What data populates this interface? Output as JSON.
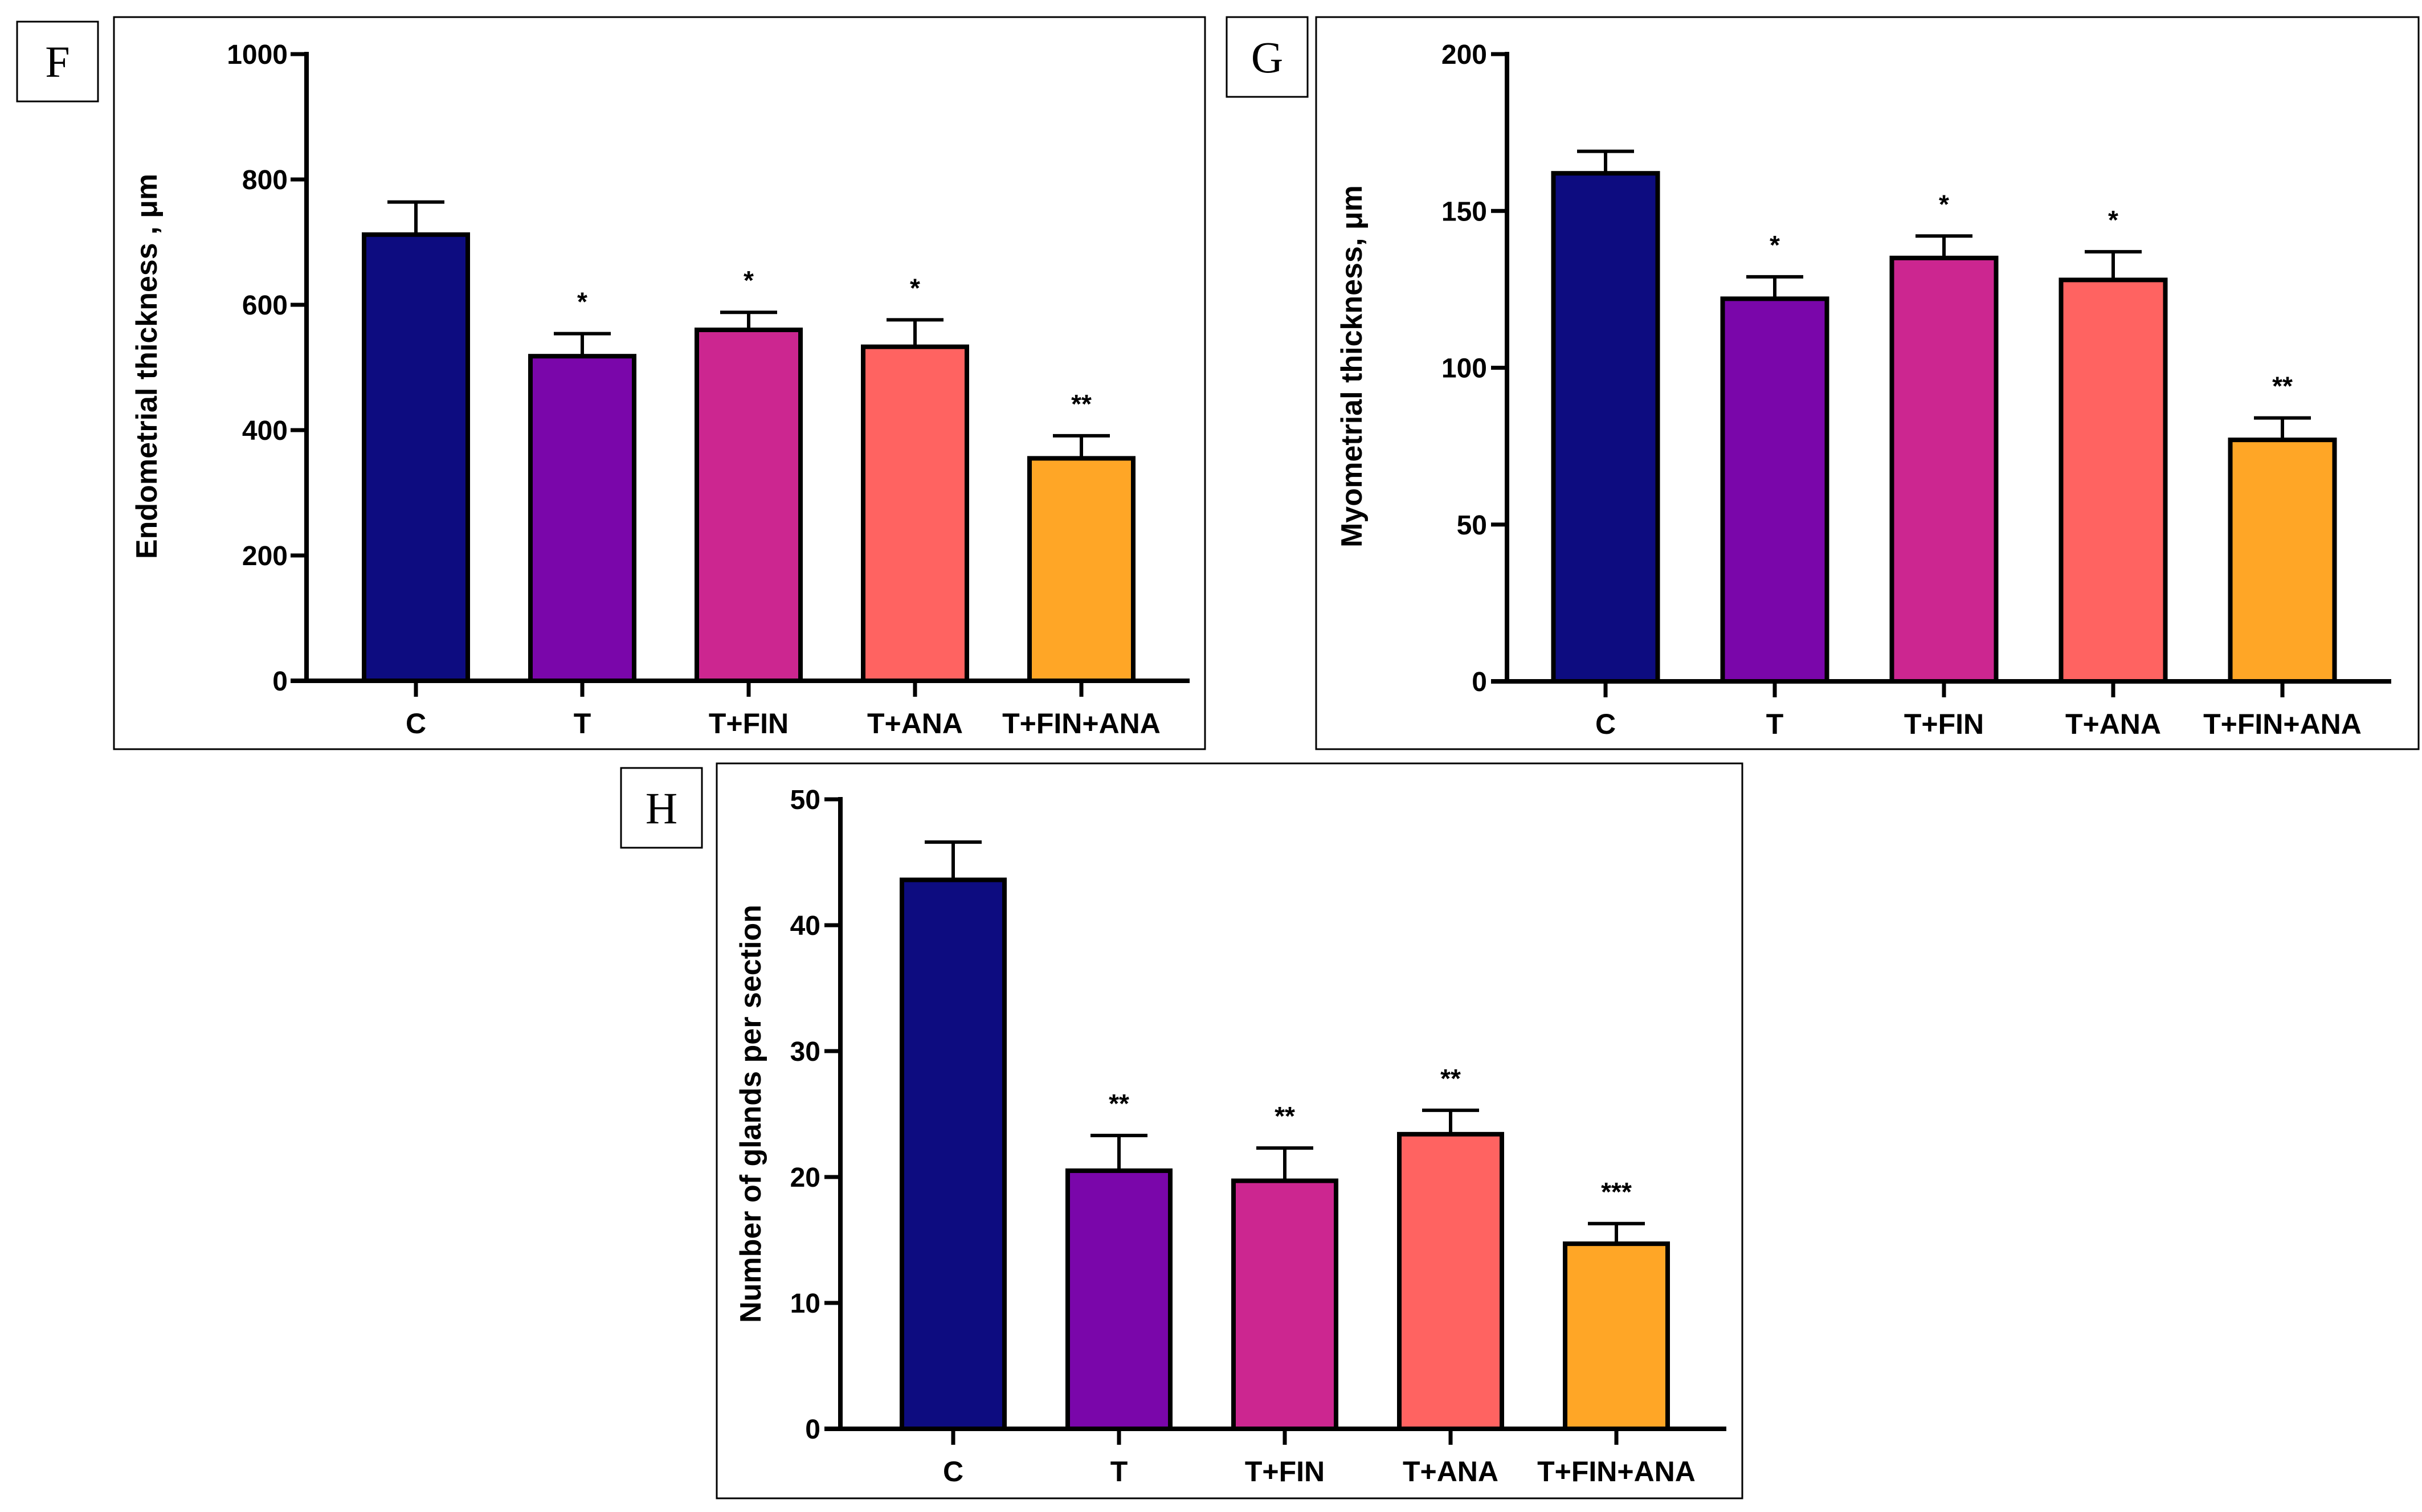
{
  "chart_data": [
    {
      "panel": "F",
      "type": "bar",
      "ylabel": "Endometrial thickness , μm",
      "ylim": [
        0,
        1000
      ],
      "yticks": [
        0,
        200,
        400,
        600,
        800,
        1000
      ],
      "categories": [
        "C",
        "T",
        "T+FIN",
        "T+ANA",
        "T+FIN+ANA"
      ],
      "values": [
        712,
        518,
        560,
        533,
        355
      ],
      "errors": [
        52,
        36,
        28,
        43,
        36
      ],
      "significance": [
        "",
        "*",
        "*",
        "*",
        "**"
      ],
      "colors": [
        "#0d0c80",
        "#7a06aa",
        "#cc2690",
        "#ff6361",
        "#ffa626"
      ]
    },
    {
      "panel": "G",
      "type": "bar",
      "ylabel": "Myometrial thickness, μm",
      "ylim": [
        0,
        200
      ],
      "yticks": [
        0,
        50,
        100,
        150,
        200
      ],
      "categories": [
        "C",
        "T",
        "T+FIN",
        "T+ANA",
        "T+FIN+ANA"
      ],
      "values": [
        162,
        122,
        135,
        128,
        77
      ],
      "errors": [
        7,
        7,
        7,
        9,
        7
      ],
      "significance": [
        "",
        "*",
        "*",
        "*",
        "**"
      ],
      "colors": [
        "#0d0c80",
        "#7a06aa",
        "#cc2690",
        "#ff6361",
        "#ffa626"
      ]
    },
    {
      "panel": "H",
      "type": "bar",
      "ylabel": "Number of glands per section",
      "ylim": [
        0,
        50
      ],
      "yticks": [
        0,
        10,
        20,
        30,
        40,
        50
      ],
      "categories": [
        "C",
        "T",
        "T+FIN",
        "T+ANA",
        "T+FIN+ANA"
      ],
      "values": [
        43.6,
        20.5,
        19.7,
        23.4,
        14.7
      ],
      "errors": [
        3.0,
        2.8,
        2.6,
        1.9,
        1.6
      ],
      "significance": [
        "",
        "**",
        "**",
        "**",
        "***"
      ],
      "colors": [
        "#0d0c80",
        "#7a06aa",
        "#cc2690",
        "#ff6361",
        "#ffa626"
      ]
    }
  ]
}
